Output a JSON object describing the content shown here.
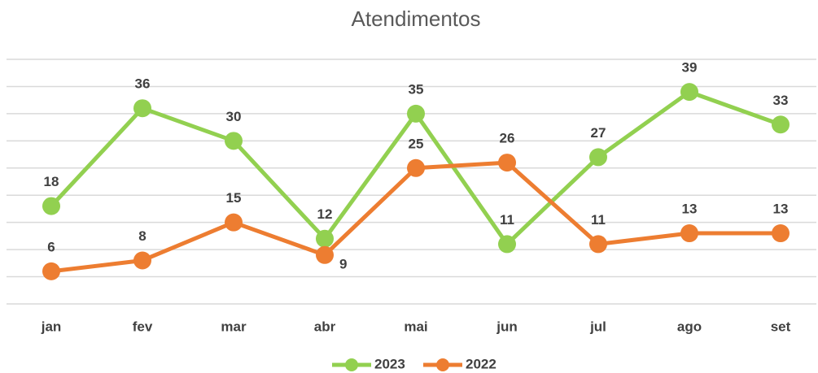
{
  "chart_data": {
    "type": "line",
    "title": "Atendimentos",
    "categories": [
      "jan",
      "fev",
      "mar",
      "abr",
      "mai",
      "jun",
      "jul",
      "ago",
      "set"
    ],
    "series": [
      {
        "name": "2023",
        "color": "#92d050",
        "values": [
          18,
          36,
          30,
          12,
          35,
          11,
          27,
          39,
          33
        ]
      },
      {
        "name": "2022",
        "color": "#ed7d31",
        "values": [
          6,
          8,
          15,
          9,
          25,
          26,
          11,
          13,
          13
        ]
      }
    ],
    "ylim": [
      0,
      45
    ],
    "yticks": [
      0,
      5,
      10,
      15,
      20,
      25,
      30,
      35,
      40,
      45
    ],
    "grid": true,
    "legend": "bottom"
  }
}
